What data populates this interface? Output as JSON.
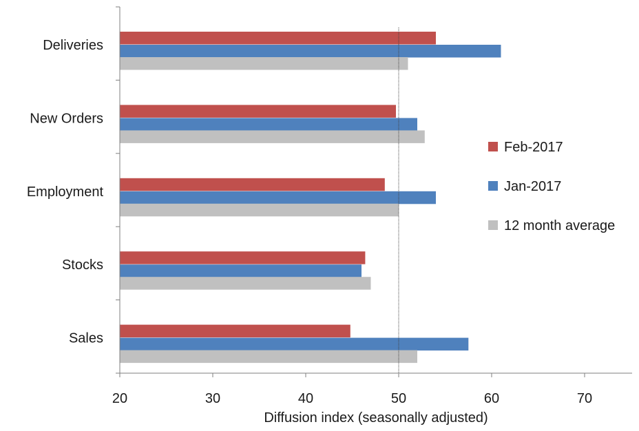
{
  "chart_data": {
    "type": "bar",
    "orientation": "horizontal",
    "title": "",
    "xlabel": "Diffusion index (seasonally adjusted)",
    "ylabel": "",
    "xlim": [
      20,
      75
    ],
    "xticks": [
      20,
      30,
      40,
      50,
      60,
      70
    ],
    "reference_line": 50,
    "categories": [
      "Deliveries",
      "New Orders",
      "Employment",
      "Stocks",
      "Sales"
    ],
    "series": [
      {
        "name": "Feb-2017",
        "color": "#c0504d",
        "values": [
          54,
          49.7,
          48.5,
          46.4,
          44.8
        ]
      },
      {
        "name": "Jan-2017",
        "color": "#4f81bd",
        "values": [
          61,
          52,
          54,
          46,
          57.5
        ]
      },
      {
        "name": "12 month average",
        "color": "#c0c0c0",
        "values": [
          51,
          52.8,
          50,
          47,
          52
        ]
      }
    ],
    "legend_position": "right",
    "grid": false
  }
}
